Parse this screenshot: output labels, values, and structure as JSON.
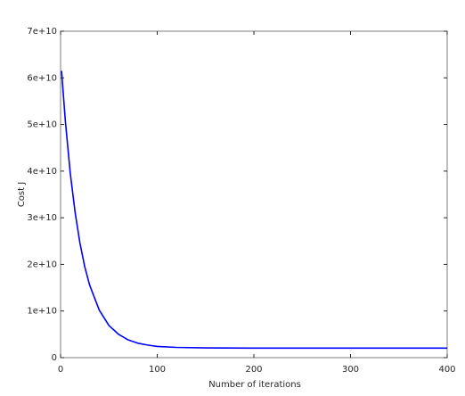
{
  "chart_data": {
    "type": "line",
    "xlabel": "Number of iterations",
    "ylabel": "Cost J",
    "x": [
      1,
      5,
      10,
      15,
      20,
      25,
      30,
      40,
      50,
      60,
      70,
      80,
      90,
      100,
      120,
      150,
      200,
      250,
      300,
      350,
      400
    ],
    "series": [
      {
        "color": "#0000ff",
        "values": [
          61500000000,
          50600000000,
          39600000000,
          31200000000,
          24600000000,
          19500000000,
          15600000000,
          10200000000,
          6900000000,
          5000000000,
          3800000000,
          3100000000,
          2700000000,
          2400000000,
          2200000000,
          2100000000,
          2040000000,
          2040000000,
          2040000000,
          2040000000,
          2040000000
        ]
      }
    ],
    "xlim": [
      0,
      400
    ],
    "xticks": [
      0,
      100,
      200,
      300,
      400
    ],
    "ylim": [
      0,
      70000000000
    ],
    "yticks": [
      0,
      {
        "value": 10000000000,
        "label": "1e+10"
      },
      {
        "value": 20000000000,
        "label": "2e+10"
      },
      {
        "value": 30000000000,
        "label": "3e+10"
      },
      {
        "value": 40000000000,
        "label": "4e+10"
      },
      {
        "value": 50000000000,
        "label": "5e+10"
      },
      {
        "value": 60000000000,
        "label": "6e+10"
      },
      {
        "value": 70000000000,
        "label": "7e+10"
      }
    ],
    "grid": false
  }
}
